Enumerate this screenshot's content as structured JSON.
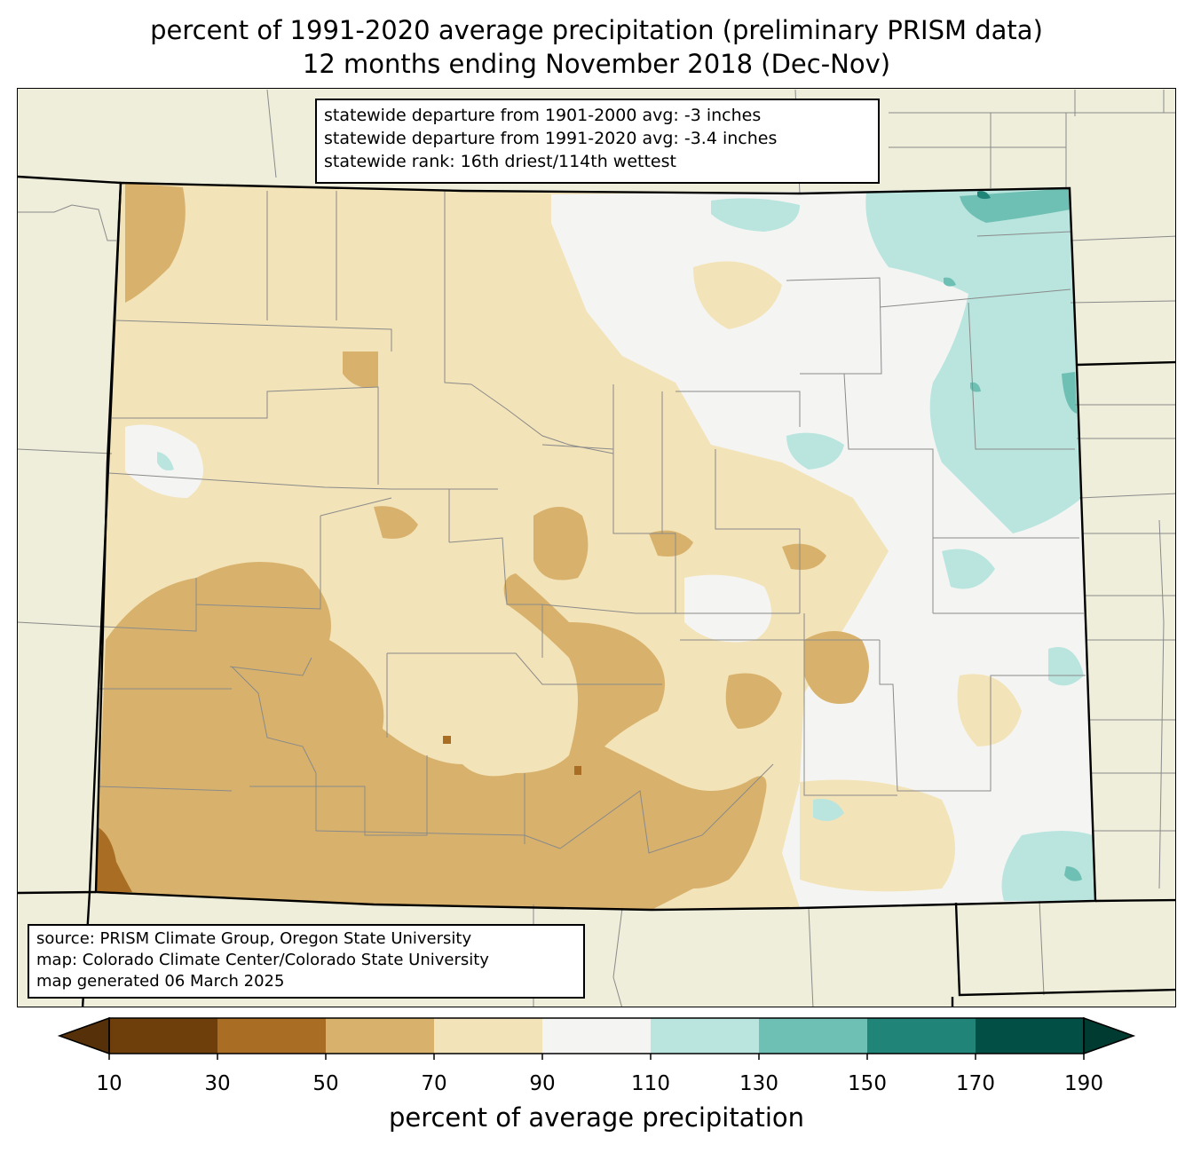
{
  "title": {
    "line1": "percent of 1991-2020 average precipitation (preliminary PRISM data)",
    "line2": "12 months ending November 2018 (Dec-Nov)"
  },
  "stats": {
    "line1": "statewide departure from 1901-2000 avg: -3 inches",
    "line2": "statewide departure from 1991-2020 avg: -3.4 inches",
    "line3": "statewide rank: 16th driest/114th wettest"
  },
  "source": {
    "line1": "source: PRISM Climate Group, Oregon State University",
    "line2": "map: Colorado Climate Center/Colorado State University",
    "line3": "map generated 06 March 2025"
  },
  "colors": {
    "background": "#efeedb",
    "county_line": "#8a8a8a",
    "state_line": "#000000"
  },
  "legend": {
    "label": "percent of average precipitation",
    "ticks": [
      "10",
      "30",
      "50",
      "70",
      "90",
      "110",
      "130",
      "150",
      "170",
      "190"
    ],
    "bins": [
      {
        "range": "10-30",
        "color": "#6e3f0b"
      },
      {
        "range": "30-50",
        "color": "#a96e24"
      },
      {
        "range": "50-70",
        "color": "#d8b26c"
      },
      {
        "range": "70-90",
        "color": "#f3e3b8"
      },
      {
        "range": "90-110",
        "color": "#f4f5f3"
      },
      {
        "range": "110-130",
        "color": "#b9e5de"
      },
      {
        "range": "130-150",
        "color": "#6fc0b4"
      },
      {
        "range": "150-170",
        "color": "#218479"
      },
      {
        "range": "170-190",
        "color": "#014f45"
      }
    ],
    "under_color": "#553008",
    "over_color": "#003b32"
  }
}
